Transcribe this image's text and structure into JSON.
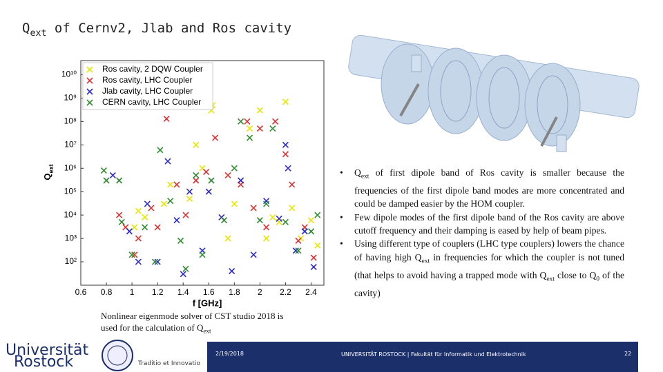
{
  "title": [
    "Q",
    "ext",
    " of Cernv2, Jlab and Ros cavity"
  ],
  "chart_data": {
    "type": "scatter",
    "xlabel": "f [GHz]",
    "ylabel": [
      "Q",
      "ext"
    ],
    "xlim": [
      0.6,
      2.5
    ],
    "ylim": [
      10,
      40000000000
    ],
    "log_y": true,
    "legend": "upper left",
    "xticks": [
      0.6,
      0.8,
      1,
      1.2,
      1.4,
      1.6,
      1.8,
      2,
      2.2,
      2.4
    ],
    "yticks": [
      {
        "value": 100,
        "label": "10²"
      },
      {
        "value": 1000,
        "label": "10³"
      },
      {
        "value": 10000,
        "label": "10⁴"
      },
      {
        "value": 100000,
        "label": "10⁵"
      },
      {
        "value": 1000000,
        "label": "10⁶"
      },
      {
        "value": 10000000,
        "label": "10⁷"
      },
      {
        "value": 100000000,
        "label": "10⁸"
      },
      {
        "value": 1000000000,
        "label": "10⁹"
      },
      {
        "value": 10000000000,
        "label": "10¹⁰"
      }
    ],
    "series": [
      {
        "name": "Ros cavity, 2 DQW Coupler",
        "color": "#e6e600",
        "x": [
          1.02,
          1.05,
          1.1,
          1.25,
          1.3,
          1.45,
          1.5,
          1.55,
          1.62,
          1.63,
          1.75,
          1.8,
          1.92,
          2.0,
          2.05,
          2.1,
          2.15,
          2.2,
          2.25,
          2.32,
          2.4,
          2.45
        ],
        "values": [
          3000,
          15000,
          8000,
          30000,
          200000,
          50000,
          10000000,
          1000000,
          300000000,
          500000000,
          1000,
          30000,
          50000000,
          300000000,
          1000,
          8000,
          5000,
          700000000,
          20000,
          1000,
          6000,
          500
        ]
      },
      {
        "name": "Ros cavity, LHC Coupler",
        "color": "#e03030",
        "x": [
          0.9,
          0.95,
          1.02,
          1.05,
          1.15,
          1.2,
          1.27,
          1.35,
          1.42,
          1.5,
          1.58,
          1.65,
          1.75,
          1.85,
          1.9,
          1.95,
          2.0,
          2.05,
          2.12,
          2.2,
          2.25,
          2.3,
          2.35,
          2.42
        ],
        "values": [
          10000,
          3000,
          200,
          1000,
          20000,
          3000,
          130000000,
          200000,
          10000,
          300000,
          700000,
          20000000,
          500000,
          200000,
          100000000,
          20000,
          50000000,
          3000,
          100000000,
          4000000,
          200000,
          800,
          3000,
          150
        ]
      },
      {
        "name": "Jlab cavity, LHC Coupler",
        "color": "#2a2ad0",
        "x": [
          0.85,
          0.98,
          1.05,
          1.12,
          1.2,
          1.28,
          1.35,
          1.4,
          1.45,
          1.55,
          1.6,
          1.7,
          1.78,
          1.85,
          1.95,
          2.05,
          2.15,
          2.2,
          2.22,
          2.28,
          2.35,
          2.42
        ],
        "values": [
          500000,
          2000,
          100,
          30000,
          100,
          2000000,
          6000,
          30,
          100000,
          300,
          100000,
          8000,
          40,
          300000,
          200,
          40000,
          7000,
          10000000,
          1000000,
          300,
          2000,
          60
        ]
      },
      {
        "name": "CERN cavity, LHC Coupler",
        "color": "#2e8b2e",
        "x": [
          0.78,
          0.8,
          0.9,
          0.92,
          1.0,
          1.1,
          1.18,
          1.22,
          1.3,
          1.38,
          1.42,
          1.5,
          1.55,
          1.62,
          1.72,
          1.8,
          1.85,
          1.92,
          2.0,
          2.05,
          2.1,
          2.2,
          2.3,
          2.4,
          2.45
        ],
        "values": [
          800000,
          300000,
          300000,
          5000,
          200,
          3000,
          100,
          6000000,
          40000,
          800,
          50,
          500000,
          200,
          300000,
          6000,
          1000000,
          100000000,
          20000000,
          6000,
          30000,
          50000000,
          5000,
          300,
          2000,
          10000
        ]
      }
    ]
  },
  "caption": [
    "Nonlinear eigenmode solver of CST studio 2018 is used for the calculation of Q",
    "ext"
  ],
  "bullets": [
    [
      "Q",
      "ext",
      " of first dipole band of Ros cavity is smaller because the frequencies of the first dipole band modes are more concentrated and could be damped easier by the HOM coupler."
    ],
    [
      "Few dipole modes of the first dipole band of the Ros cavity are above cutoff frequency and their damping is eased by help of beam pipes."
    ],
    [
      "Using different type of couplers (LHC type couplers) lowers the chance of having high Q",
      "ext",
      " in frequencies for which the coupler is not tuned (that helps to avoid having a trapped mode with Q",
      "ext",
      " close to Q",
      "0",
      " of the cavity)"
    ]
  ],
  "footer": {
    "logo": [
      "Universität",
      "Rostock"
    ],
    "motto": "Traditio et Innovatio",
    "date": "2/19/2018",
    "institution": "UNIVERSITÄT ROSTOCK | Fakultät für Informatik und Elektrotechnik",
    "page": "22"
  }
}
